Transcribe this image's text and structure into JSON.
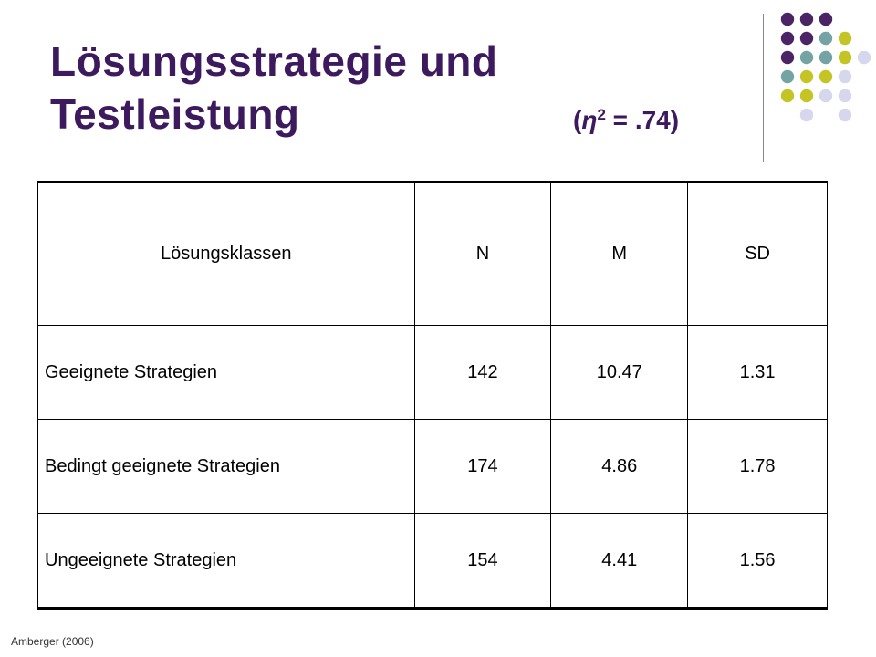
{
  "title": {
    "line1": "Lösungsstrategie und",
    "line2": "Testleistung",
    "eta_open": "(",
    "eta_symbol": "η",
    "eta_sup": "2",
    "eta_rest": " = .74)"
  },
  "table": {
    "headers": [
      "Lösungsklassen",
      "N",
      "M",
      "SD"
    ],
    "rows": [
      [
        "Geeignete Strategien",
        "142",
        "10.47",
        "1.31"
      ],
      [
        "Bedingt geeignete Strategien",
        "174",
        "4.86",
        "1.78"
      ],
      [
        "Ungeeignete Strategien",
        "154",
        "4.41",
        "1.56"
      ]
    ]
  },
  "source": "Amberger (2006)",
  "decoration": {
    "colors": {
      "purple": "#4b2466",
      "teal": "#74a3a4",
      "olive": "#c4c424",
      "lavender": "#d6d6ec"
    },
    "dot_grid": [
      [
        "purple",
        "purple",
        "purple",
        "",
        ""
      ],
      [
        "purple",
        "purple",
        "teal",
        "olive",
        ""
      ],
      [
        "purple",
        "teal",
        "teal",
        "olive",
        "lavender"
      ],
      [
        "teal",
        "olive",
        "olive",
        "lavender",
        ""
      ],
      [
        "olive",
        "olive",
        "lavender",
        "lavender",
        ""
      ],
      [
        "",
        "lavender",
        "",
        "lavender",
        ""
      ]
    ]
  }
}
